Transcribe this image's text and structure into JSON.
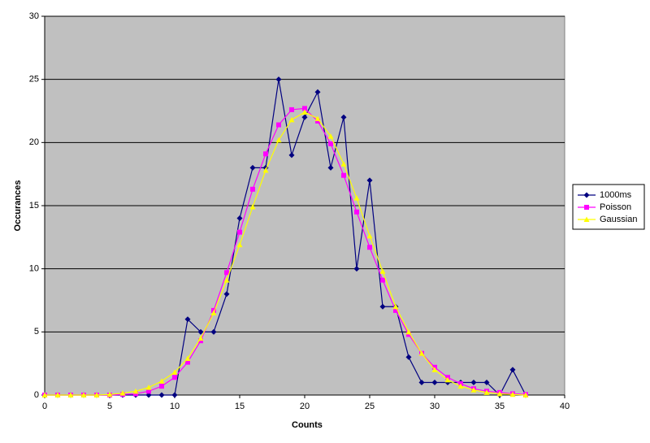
{
  "chart_data": {
    "type": "line",
    "x": [
      0,
      1,
      2,
      3,
      4,
      5,
      6,
      7,
      8,
      9,
      10,
      11,
      12,
      13,
      14,
      15,
      16,
      17,
      18,
      19,
      20,
      21,
      22,
      23,
      24,
      25,
      26,
      27,
      28,
      29,
      30,
      31,
      32,
      33,
      34,
      35,
      36,
      37
    ],
    "series": [
      {
        "name": "1000ms",
        "color": "#000080",
        "marker": "diamond",
        "values": [
          0,
          0,
          0,
          0,
          0,
          0,
          0,
          0,
          0,
          0,
          0,
          6,
          5,
          5,
          8,
          14,
          18,
          18,
          25,
          19,
          22,
          24,
          18,
          22,
          10,
          17,
          7,
          7,
          3,
          1,
          1,
          1,
          1,
          1,
          1,
          0,
          2,
          0
        ]
      },
      {
        "name": "Poisson",
        "color": "#ff00ff",
        "marker": "square",
        "values": [
          0,
          0,
          0,
          0,
          0,
          0,
          0.05,
          0.1,
          0.3,
          0.7,
          1.4,
          2.6,
          4.3,
          6.7,
          9.7,
          12.9,
          16.3,
          19.1,
          21.4,
          22.6,
          22.7,
          21.7,
          19.9,
          17.4,
          14.5,
          11.7,
          9.1,
          6.7,
          4.8,
          3.3,
          2.2,
          1.4,
          0.9,
          0.5,
          0.3,
          0.2,
          0.1,
          0.05
        ]
      },
      {
        "name": "Gaussian",
        "color": "#ffff00",
        "marker": "triangle",
        "values": [
          0,
          0,
          0,
          0,
          0,
          0.05,
          0.15,
          0.3,
          0.6,
          1.1,
          1.8,
          2.9,
          4.5,
          6.5,
          9.1,
          11.9,
          14.9,
          17.8,
          20.2,
          21.8,
          22.4,
          21.9,
          20.5,
          18.3,
          15.6,
          12.6,
          9.8,
          7.0,
          5.0,
          3.3,
          2.0,
          1.2,
          0.7,
          0.4,
          0.2,
          0.1,
          0.05,
          0
        ]
      }
    ],
    "xlabel": "Counts",
    "ylabel": "Occurances",
    "xlim": [
      0,
      40
    ],
    "xticks": [
      0,
      5,
      10,
      15,
      20,
      25,
      30,
      35,
      40
    ],
    "ylim": [
      0,
      30
    ],
    "yticks": [
      0,
      5,
      10,
      15,
      20,
      25,
      30
    ],
    "grid": true,
    "legend": "right"
  }
}
